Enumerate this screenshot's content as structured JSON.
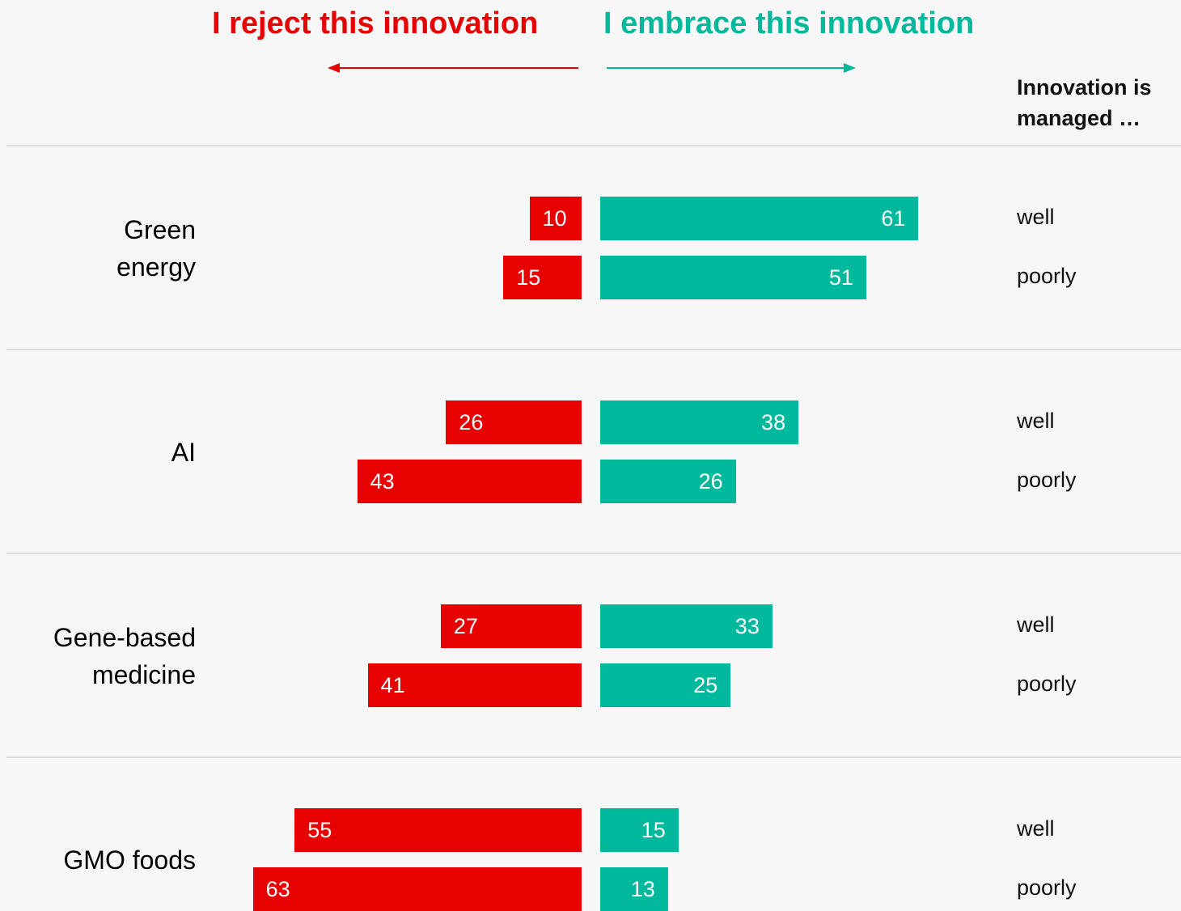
{
  "chart_data": {
    "type": "diverging_bar",
    "categories": [
      "Green energy",
      "AI",
      "Gene-based medicine",
      "GMO foods"
    ],
    "subcategories": [
      [
        "well",
        "poorly"
      ],
      [
        "well",
        "poorly"
      ],
      [
        "well",
        "poorly"
      ],
      [
        "well",
        "poorly"
      ]
    ],
    "subcategory_title": "Innovation is managed …",
    "series": [
      {
        "name": "I reject this innovation",
        "color": "#e60000",
        "side": "left",
        "values": [
          [
            10,
            15
          ],
          [
            26,
            43
          ],
          [
            27,
            41
          ],
          [
            55,
            63
          ]
        ]
      },
      {
        "name": "I embrace this innovation",
        "color": "#00b89c",
        "side": "right",
        "values": [
          [
            61,
            51
          ],
          [
            38,
            26
          ],
          [
            33,
            25
          ],
          [
            15,
            13
          ]
        ]
      }
    ]
  }
}
